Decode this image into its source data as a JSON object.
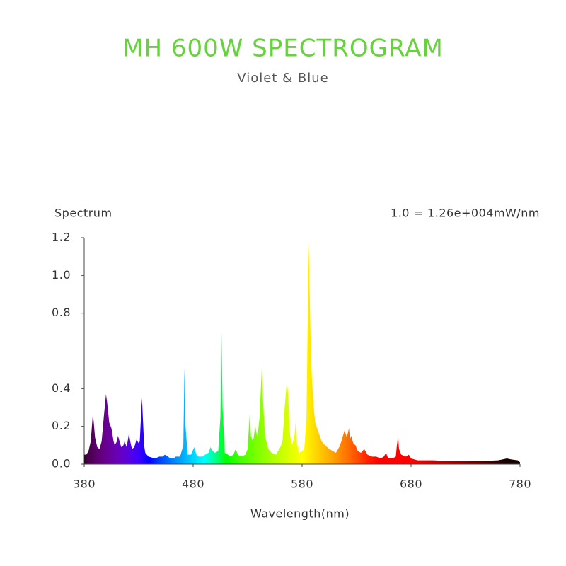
{
  "chart_data": {
    "type": "area",
    "title": "MH 600W SPECTROGRAM",
    "subtitle": "Violet & Blue",
    "ylabel": "Spectrum",
    "annotation": "1.0 = 1.26e+004mW/nm",
    "xlabel": "Wavelength(nm)",
    "xlim": [
      380,
      780
    ],
    "ylim": [
      0,
      1.2
    ],
    "xticks": [
      380,
      480,
      580,
      680,
      780
    ],
    "yticks": [
      {
        "value": 0,
        "label": "0.0"
      },
      0.2,
      0.4,
      0.8,
      {
        "value": 1,
        "label": "1.0"
      },
      1.2
    ],
    "x": [
      380,
      382,
      384,
      386,
      388,
      390,
      392,
      394,
      396,
      398,
      400,
      401,
      403,
      405,
      407,
      408,
      410,
      411,
      413,
      414,
      416,
      417,
      419,
      421,
      423,
      424,
      426,
      428,
      430,
      431,
      433,
      435,
      436,
      439,
      445,
      449,
      452,
      454,
      457,
      459,
      462,
      464,
      468,
      471,
      472,
      473,
      475,
      478,
      481,
      483,
      485,
      488,
      491,
      494,
      496,
      498,
      500,
      503,
      505,
      506,
      507,
      509,
      512,
      514,
      517,
      519,
      521,
      524,
      528,
      530,
      532,
      533,
      535,
      537,
      539,
      541,
      543,
      544,
      546,
      549,
      552,
      556,
      558,
      560,
      562,
      564,
      566,
      567,
      569,
      571,
      573,
      574,
      575,
      577,
      580,
      582,
      584,
      585,
      586,
      587,
      588,
      589,
      591,
      592,
      595,
      598,
      601,
      605,
      608,
      611,
      614,
      616,
      618,
      619,
      621,
      623,
      624,
      625,
      627,
      629,
      631,
      634,
      637,
      640,
      644,
      648,
      652,
      655,
      657,
      659,
      663,
      666,
      667,
      668,
      669,
      671,
      675,
      678,
      680,
      686,
      700,
      720,
      740,
      760,
      768,
      772,
      778,
      780
    ],
    "values": [
      0.05,
      0.05,
      0.07,
      0.12,
      0.27,
      0.14,
      0.09,
      0.08,
      0.12,
      0.25,
      0.37,
      0.33,
      0.22,
      0.19,
      0.12,
      0.1,
      0.12,
      0.15,
      0.11,
      0.09,
      0.1,
      0.12,
      0.09,
      0.16,
      0.1,
      0.08,
      0.09,
      0.13,
      0.11,
      0.12,
      0.35,
      0.1,
      0.06,
      0.04,
      0.03,
      0.04,
      0.04,
      0.05,
      0.04,
      0.03,
      0.03,
      0.04,
      0.04,
      0.1,
      0.51,
      0.2,
      0.05,
      0.05,
      0.09,
      0.05,
      0.04,
      0.04,
      0.05,
      0.06,
      0.09,
      0.07,
      0.06,
      0.07,
      0.25,
      0.7,
      0.3,
      0.06,
      0.05,
      0.04,
      0.05,
      0.08,
      0.05,
      0.04,
      0.05,
      0.08,
      0.27,
      0.15,
      0.12,
      0.2,
      0.14,
      0.25,
      0.51,
      0.35,
      0.15,
      0.08,
      0.06,
      0.05,
      0.07,
      0.09,
      0.12,
      0.3,
      0.44,
      0.38,
      0.15,
      0.1,
      0.15,
      0.22,
      0.12,
      0.06,
      0.07,
      0.08,
      0.25,
      0.7,
      1.17,
      0.9,
      0.6,
      0.45,
      0.28,
      0.22,
      0.17,
      0.12,
      0.1,
      0.08,
      0.07,
      0.06,
      0.09,
      0.12,
      0.16,
      0.18,
      0.14,
      0.19,
      0.13,
      0.15,
      0.11,
      0.1,
      0.07,
      0.06,
      0.08,
      0.05,
      0.04,
      0.04,
      0.03,
      0.04,
      0.06,
      0.03,
      0.03,
      0.04,
      0.1,
      0.14,
      0.08,
      0.05,
      0.04,
      0.05,
      0.03,
      0.02,
      0.02,
      0.015,
      0.015,
      0.02,
      0.03,
      0.025,
      0.02,
      0.01
    ]
  }
}
